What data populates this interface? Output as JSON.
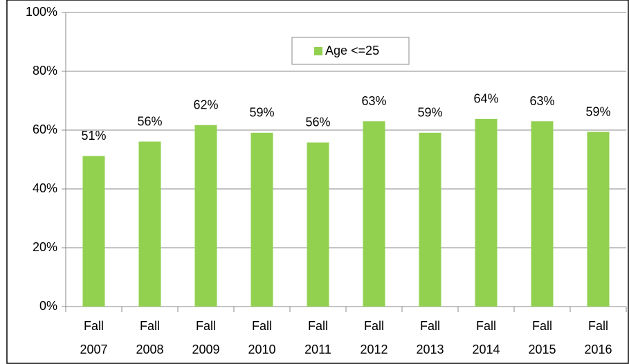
{
  "chart_data": {
    "type": "bar",
    "categories": [
      "Fall 2007",
      "Fall 2008",
      "Fall 2009",
      "Fall 2010",
      "Fall 2011",
      "Fall 2012",
      "Fall 2013",
      "Fall 2014",
      "Fall 2015",
      "Fall 2016"
    ],
    "series": [
      {
        "name": "Age <=25",
        "color": "#92d050",
        "values": [
          51.2,
          56.1,
          61.7,
          59.1,
          55.8,
          63.0,
          59.1,
          63.8,
          63.0,
          59.4
        ],
        "value_labels": [
          "51%",
          "56%",
          "62%",
          "59%",
          "56%",
          "63%",
          "59%",
          "64%",
          "63%",
          "59%"
        ]
      }
    ],
    "ylim": [
      0,
      100
    ],
    "yticks": [
      {
        "value": 0,
        "label": "0%"
      },
      {
        "value": 20,
        "label": "20%"
      },
      {
        "value": 40,
        "label": "40%"
      },
      {
        "value": 60,
        "label": "60%"
      },
      {
        "value": 80,
        "label": "80%"
      },
      {
        "value": 100,
        "label": "100%"
      }
    ],
    "grid": true,
    "legend": "top"
  }
}
